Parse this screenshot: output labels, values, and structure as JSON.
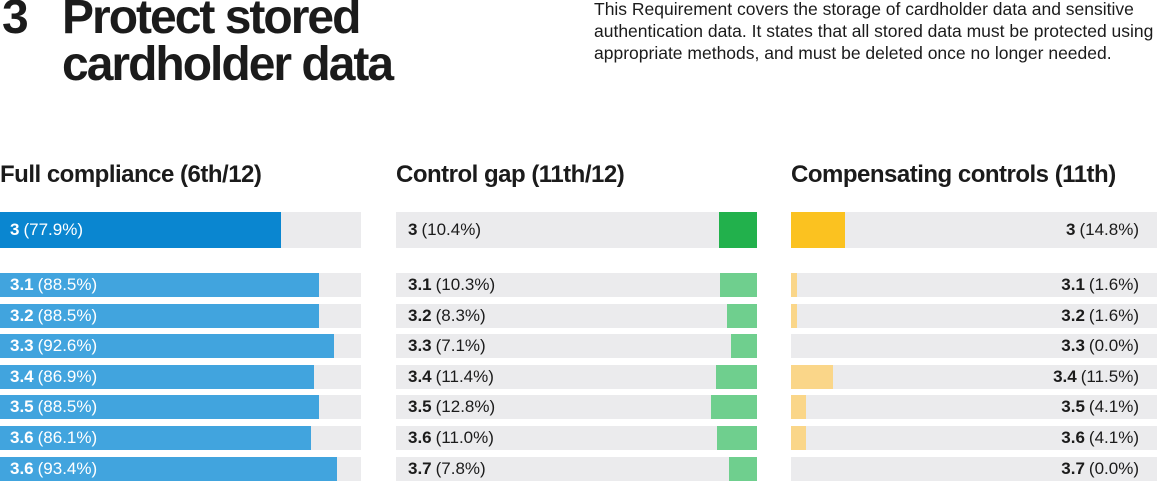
{
  "section": {
    "number": "3",
    "title_line1": "Protect stored",
    "title_line2": "cardholder data",
    "description": "This Requirement covers the storage of cardholder data and sensitive authentication data. It states that all stored data must be protected using appropriate methods, and must be deleted once no longer needed."
  },
  "colors": {
    "track": "#ebebed",
    "full_main": "#0a86d0",
    "full_sub": "#41a4de",
    "gap_main": "#22b14c",
    "gap_sub": "#6fcf8e",
    "comp_main": "#fbc220",
    "comp_sub": "#fad689"
  },
  "chart_data": [
    {
      "type": "bar",
      "title": "Full compliance (6th/12)",
      "categories": [
        "3",
        "3.1",
        "3.2",
        "3.3",
        "3.4",
        "3.5",
        "3.6",
        "3.6"
      ],
      "values": [
        77.9,
        88.5,
        88.5,
        92.6,
        86.9,
        88.5,
        86.1,
        93.4
      ],
      "value_labels": [
        "(77.9%)",
        "(88.5%)",
        "(88.5%)",
        "(92.6%)",
        "(86.9%)",
        "(88.5%)",
        "(86.1%)",
        "(93.4%)"
      ],
      "xlim": [
        0,
        100
      ],
      "orientation": "horizontal",
      "bar_origin": "left"
    },
    {
      "type": "bar",
      "title": "Control gap (11th/12)",
      "categories": [
        "3",
        "3.1",
        "3.2",
        "3.3",
        "3.4",
        "3.5",
        "3.6",
        "3.7"
      ],
      "values": [
        10.4,
        10.3,
        8.3,
        7.1,
        11.4,
        12.8,
        11.0,
        7.8
      ],
      "value_labels": [
        "(10.4%)",
        "(10.3%)",
        "(8.3%)",
        "(7.1%)",
        "(11.4%)",
        "(12.8%)",
        "(11.0%)",
        "(7.8%)"
      ],
      "xlim": [
        0,
        100
      ],
      "orientation": "horizontal",
      "bar_origin": "right"
    },
    {
      "type": "bar",
      "title": "Compensating controls (11th)",
      "categories": [
        "3",
        "3.1",
        "3.2",
        "3.3",
        "3.4",
        "3.5",
        "3.6",
        "3.7"
      ],
      "values": [
        14.8,
        1.6,
        1.6,
        0.0,
        11.5,
        4.1,
        4.1,
        0.0
      ],
      "value_labels": [
        "(14.8%)",
        "(1.6%)",
        "(1.6%)",
        "(0.0%)",
        "(11.5%)",
        "(4.1%)",
        "(4.1%)",
        "(0.0%)"
      ],
      "xlim": [
        0,
        100
      ],
      "orientation": "horizontal",
      "bar_origin": "left"
    }
  ]
}
